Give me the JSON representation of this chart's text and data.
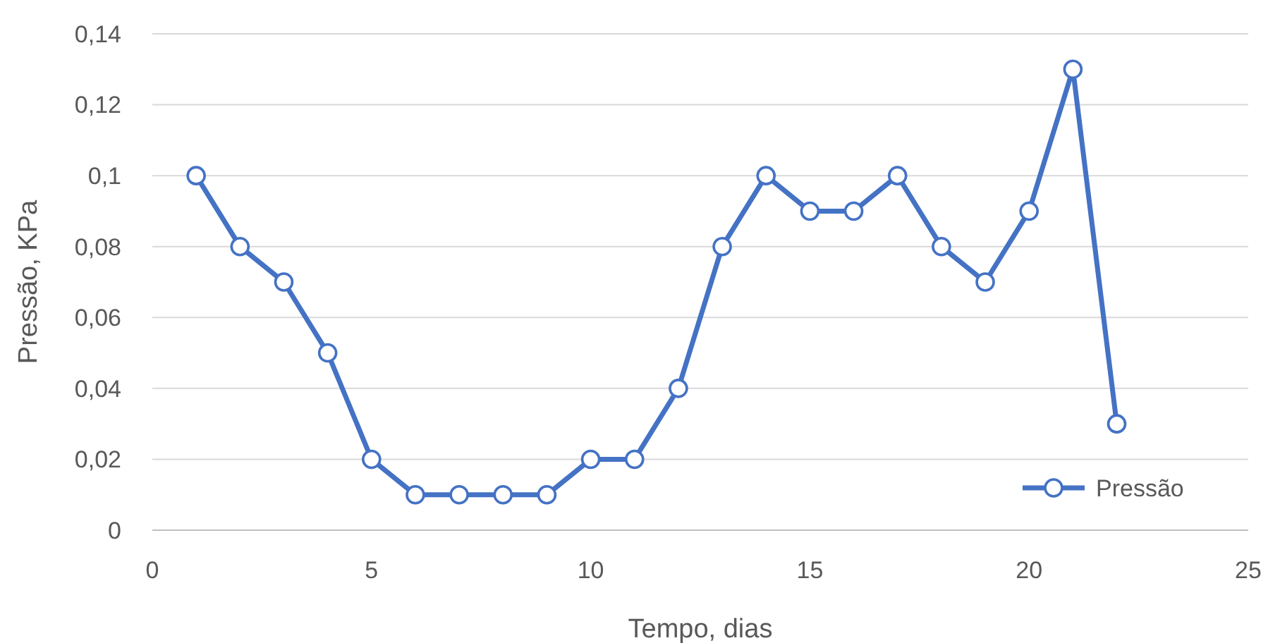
{
  "chart_data": {
    "type": "line",
    "xlabel": "Tempo, dias",
    "ylabel": "Pressão, KPa",
    "x": [
      1,
      2,
      3,
      4,
      5,
      6,
      7,
      8,
      9,
      10,
      11,
      12,
      13,
      14,
      15,
      16,
      17,
      18,
      19,
      20,
      21,
      22
    ],
    "series": [
      {
        "name": "Pressão",
        "color": "#4472c4",
        "values": [
          0.1,
          0.08,
          0.07,
          0.05,
          0.02,
          0.01,
          0.01,
          0.01,
          0.01,
          0.02,
          0.02,
          0.04,
          0.08,
          0.1,
          0.09,
          0.09,
          0.1,
          0.08,
          0.07,
          0.09,
          0.13,
          0.03
        ]
      }
    ],
    "xlim": [
      0,
      25
    ],
    "xticks": [
      0,
      5,
      10,
      15,
      20,
      25
    ],
    "ylim": [
      0,
      0.14
    ],
    "yticks": [
      {
        "value": 0,
        "label": "0"
      },
      {
        "value": 0.02,
        "label": "0,02"
      },
      {
        "value": 0.04,
        "label": "0,04"
      },
      {
        "value": 0.06,
        "label": "0,06"
      },
      {
        "value": 0.08,
        "label": "0,08"
      },
      {
        "value": 0.1,
        "label": "0,1"
      },
      {
        "value": 0.12,
        "label": "0,12"
      },
      {
        "value": 0.14,
        "label": "0,14"
      }
    ],
    "grid": "y",
    "legend": "bottom right",
    "marker": "circle",
    "line_style": "solid"
  }
}
